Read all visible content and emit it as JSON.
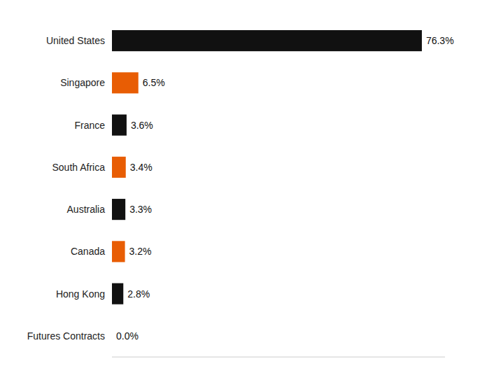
{
  "chart_data": {
    "type": "bar",
    "orientation": "horizontal",
    "categories": [
      "United States",
      "Singapore",
      "France",
      "South Africa",
      "Australia",
      "Canada",
      "Hong Kong",
      "Futures Contracts"
    ],
    "values": [
      76.3,
      6.5,
      3.6,
      3.4,
      3.3,
      3.2,
      2.8,
      0.0
    ],
    "value_labels": [
      "76.3%",
      "6.5%",
      "3.6%",
      "3.4%",
      "3.3%",
      "3.2%",
      "2.8%",
      "0.0%"
    ],
    "colors": [
      "#111111",
      "#e85d04",
      "#111111",
      "#e85d04",
      "#111111",
      "#e85d04",
      "#111111",
      "#ffffff"
    ],
    "xlim": [
      0,
      82
    ],
    "data_labels": true,
    "tick_labels": "y",
    "grid": false
  }
}
